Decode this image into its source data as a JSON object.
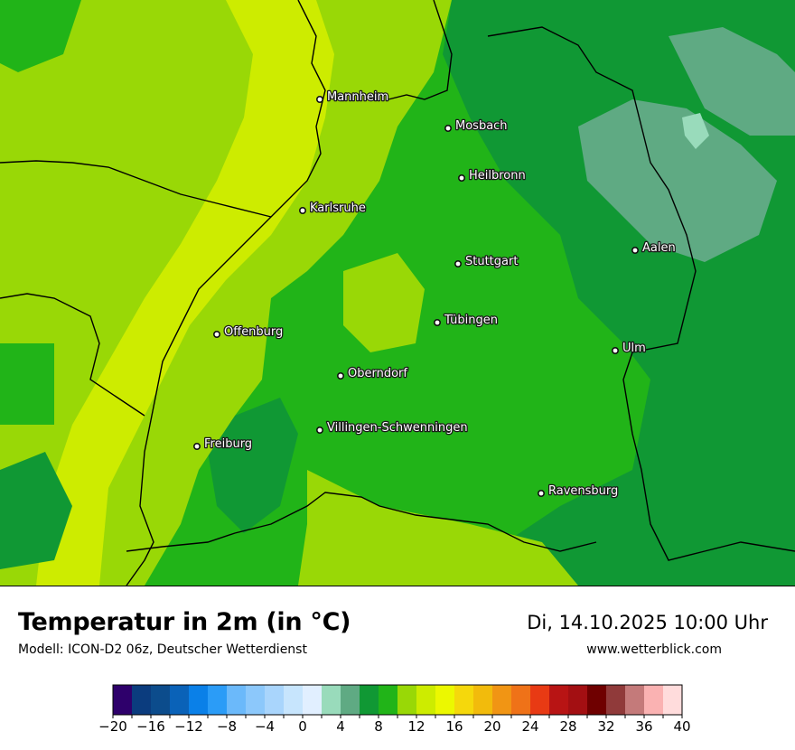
{
  "title": "Temperatur in 2m (in °C)",
  "model": "Modell: ICON-D2 06z, Deutscher Wetterdienst",
  "datetime": "Di, 14.10.2025 10:00 Uhr",
  "website": "www.wetterblick.com",
  "cities": [
    {
      "name": "Mannheim"
    },
    {
      "name": "Mosbach"
    },
    {
      "name": "Heilbronn"
    },
    {
      "name": "Karlsruhe"
    },
    {
      "name": "Aalen"
    },
    {
      "name": "Stuttgart"
    },
    {
      "name": "Tübingen"
    },
    {
      "name": "Offenburg"
    },
    {
      "name": "Ulm"
    },
    {
      "name": "Oberndorf"
    },
    {
      "name": "Villingen-Schwenningen"
    },
    {
      "name": "Freiburg"
    },
    {
      "name": "Ravensburg"
    }
  ],
  "scale": {
    "min": -20,
    "max": 40,
    "step": 2,
    "tick_labels": [
      "−20",
      "−16",
      "−12",
      "−8",
      "−4",
      "0",
      "4",
      "8",
      "12",
      "16",
      "20",
      "24",
      "28",
      "32",
      "36",
      "40"
    ],
    "colors": [
      "#2e006b",
      "#0b3c7e",
      "#0c4c8c",
      "#0a62b8",
      "#0a80e8",
      "#2b9cf7",
      "#6bb9fa",
      "#8cc8fb",
      "#a9d5fc",
      "#c7e5fd",
      "#e1efff",
      "#99dbbb",
      "#5faa83",
      "#109834",
      "#21b418",
      "#99d806",
      "#cdec00",
      "#ecf800",
      "#f5d80c",
      "#f2bb0c",
      "#f19514",
      "#ef7218",
      "#e83a14",
      "#b81414",
      "#a30f12",
      "#6f0000",
      "#903a3a",
      "#c47a7a",
      "#fab2b2",
      "#ffdcdc"
    ]
  }
}
